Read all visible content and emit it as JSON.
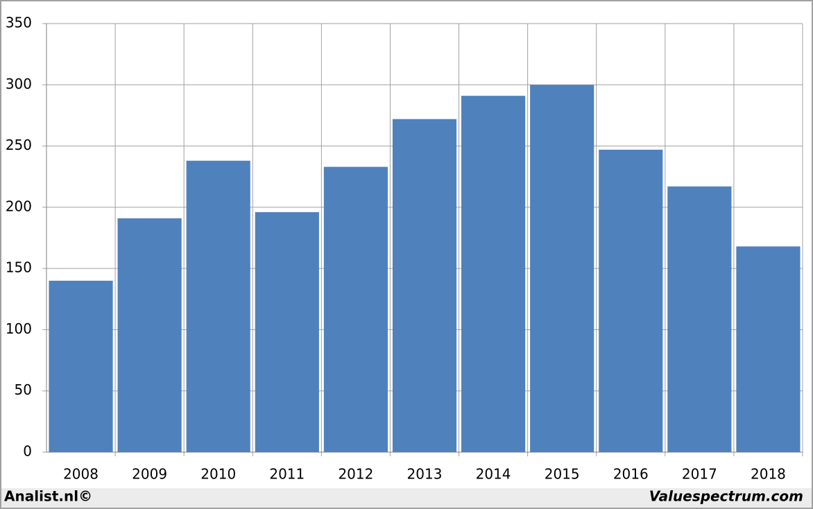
{
  "chart_data": {
    "type": "bar",
    "categories": [
      "2008",
      "2009",
      "2010",
      "2011",
      "2012",
      "2013",
      "2014",
      "2015",
      "2016",
      "2017",
      "2018"
    ],
    "values": [
      140,
      191,
      238,
      196,
      233,
      272,
      291,
      300,
      247,
      217,
      168
    ],
    "color": "#4f81bd",
    "ylim": [
      0,
      350
    ],
    "yticks": [
      0,
      50,
      100,
      150,
      200,
      250,
      300,
      350
    ],
    "grid": true
  },
  "footer": {
    "left": "Analist.nl©",
    "right": "Valuespectrum.com"
  }
}
